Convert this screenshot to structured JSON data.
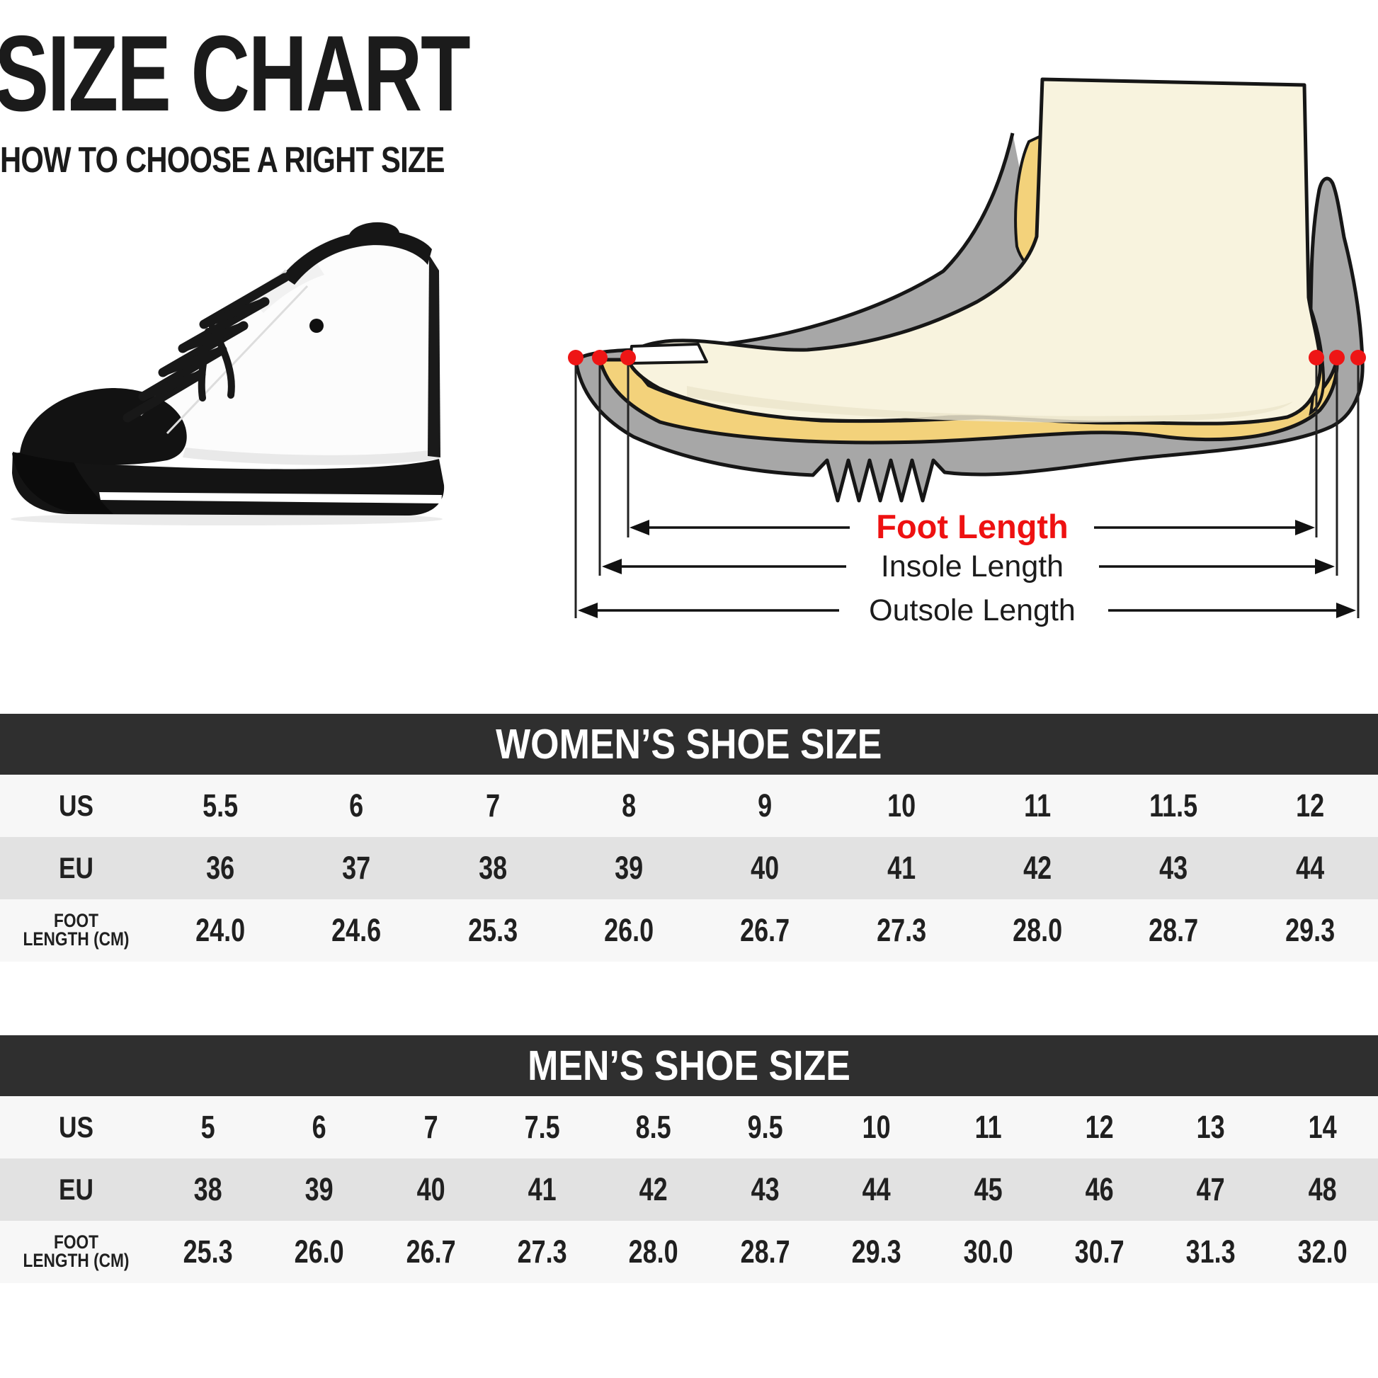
{
  "header": {
    "title": "SIZE CHART",
    "subtitle": "HOW TO CHOOSE A RIGHT SIZE"
  },
  "diagram": {
    "foot_length_label": "Foot Length",
    "insole_length_label": "Insole Length",
    "outsole_length_label": "Outsole Length",
    "colors": {
      "outsole_gray": "#a7a7a7",
      "insole_yellow": "#f3d27b",
      "foot_cream": "#f8f3de",
      "outline_black": "#161616",
      "marker_red": "#ee1515",
      "foot_length_text_red": "#ee1111"
    }
  },
  "sneaker": {
    "alt": "high-top-sneaker"
  },
  "tables": {
    "colors": {
      "header_bg": "#2f2f2f",
      "row_bg": "#f7f7f7",
      "row_alt_bg": "#e2e2e2"
    },
    "women": {
      "title": "WOMEN’S SHOE SIZE",
      "rows": [
        {
          "label": "US",
          "values": [
            "5.5",
            "6",
            "7",
            "8",
            "9",
            "10",
            "11",
            "11.5",
            "12"
          ]
        },
        {
          "label": "EU",
          "values": [
            "36",
            "37",
            "38",
            "39",
            "40",
            "41",
            "42",
            "43",
            "44"
          ]
        },
        {
          "label": "FOOT\nLENGTH (CM)",
          "values": [
            "24.0",
            "24.6",
            "25.3",
            "26.0",
            "26.7",
            "27.3",
            "28.0",
            "28.7",
            "29.3"
          ]
        }
      ]
    },
    "men": {
      "title": "MEN’S SHOE SIZE",
      "rows": [
        {
          "label": "US",
          "values": [
            "5",
            "6",
            "7",
            "7.5",
            "8.5",
            "9.5",
            "10",
            "11",
            "12",
            "13",
            "14"
          ]
        },
        {
          "label": "EU",
          "values": [
            "38",
            "39",
            "40",
            "41",
            "42",
            "43",
            "44",
            "45",
            "46",
            "47",
            "48"
          ]
        },
        {
          "label": "FOOT\nLENGTH (CM)",
          "values": [
            "25.3",
            "26.0",
            "26.7",
            "27.3",
            "28.0",
            "28.7",
            "29.3",
            "30.0",
            "30.7",
            "31.3",
            "32.0"
          ]
        }
      ]
    }
  }
}
